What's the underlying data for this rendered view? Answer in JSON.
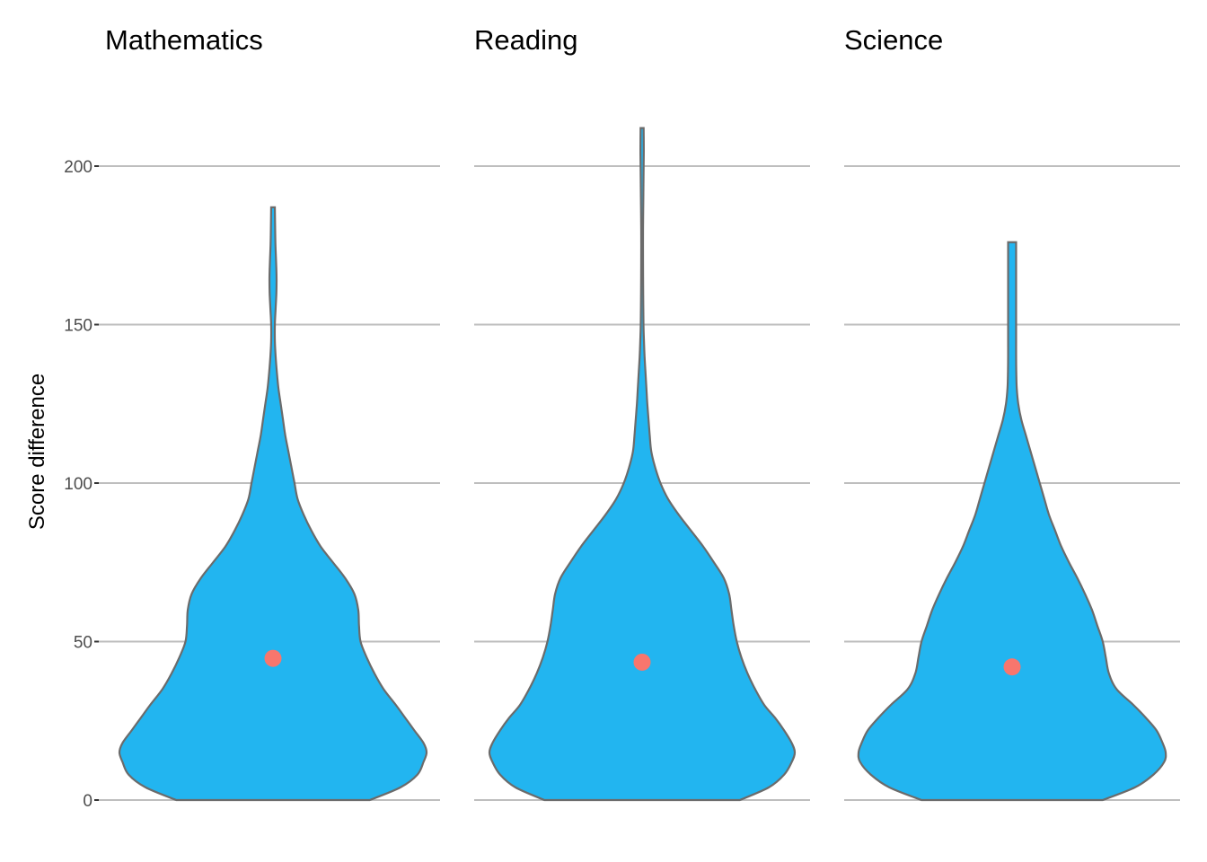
{
  "chart_data": {
    "type": "violin",
    "ylabel": "Score difference",
    "ylim": [
      0,
      212
    ],
    "yticks": [
      0,
      50,
      100,
      150,
      200
    ],
    "grid": "horizontal",
    "colors": {
      "violin_fill": "#22B5F0",
      "violin_outline": "#6b6b6b",
      "mean_point": "#F8766D",
      "grid": "#bebebe"
    },
    "panels": [
      {
        "title": "Mathematics",
        "mean": 44.7,
        "max": 187,
        "density_profile": [
          [
            0,
            0.63
          ],
          [
            4,
            0.83
          ],
          [
            8,
            0.94
          ],
          [
            12,
            0.98
          ],
          [
            15,
            1.0
          ],
          [
            18,
            0.98
          ],
          [
            22,
            0.92
          ],
          [
            26,
            0.86
          ],
          [
            30,
            0.8
          ],
          [
            35,
            0.72
          ],
          [
            40,
            0.66
          ],
          [
            45,
            0.61
          ],
          [
            50,
            0.57
          ],
          [
            55,
            0.56
          ],
          [
            60,
            0.555
          ],
          [
            65,
            0.53
          ],
          [
            70,
            0.47
          ],
          [
            75,
            0.39
          ],
          [
            80,
            0.31
          ],
          [
            85,
            0.25
          ],
          [
            90,
            0.2
          ],
          [
            95,
            0.16
          ],
          [
            100,
            0.14
          ],
          [
            105,
            0.12
          ],
          [
            110,
            0.1
          ],
          [
            115,
            0.08
          ],
          [
            120,
            0.065
          ],
          [
            125,
            0.05
          ],
          [
            130,
            0.035
          ],
          [
            135,
            0.025
          ],
          [
            140,
            0.017
          ],
          [
            145,
            0.012
          ],
          [
            150,
            0.012
          ],
          [
            155,
            0.017
          ],
          [
            160,
            0.022
          ],
          [
            165,
            0.023
          ],
          [
            170,
            0.02
          ],
          [
            175,
            0.016
          ],
          [
            180,
            0.014
          ],
          [
            187,
            0.012
          ]
        ]
      },
      {
        "title": "Reading",
        "mean": 43.5,
        "max": 212,
        "density_profile": [
          [
            0,
            0.64
          ],
          [
            4,
            0.83
          ],
          [
            8,
            0.93
          ],
          [
            12,
            0.98
          ],
          [
            15,
            1.0
          ],
          [
            18,
            0.98
          ],
          [
            22,
            0.93
          ],
          [
            26,
            0.87
          ],
          [
            30,
            0.8
          ],
          [
            35,
            0.74
          ],
          [
            40,
            0.69
          ],
          [
            45,
            0.65
          ],
          [
            50,
            0.62
          ],
          [
            55,
            0.6
          ],
          [
            60,
            0.585
          ],
          [
            65,
            0.57
          ],
          [
            70,
            0.535
          ],
          [
            75,
            0.47
          ],
          [
            80,
            0.4
          ],
          [
            85,
            0.32
          ],
          [
            90,
            0.24
          ],
          [
            95,
            0.17
          ],
          [
            100,
            0.12
          ],
          [
            105,
            0.085
          ],
          [
            110,
            0.06
          ],
          [
            115,
            0.05
          ],
          [
            120,
            0.042
          ],
          [
            125,
            0.034
          ],
          [
            130,
            0.028
          ],
          [
            135,
            0.022
          ],
          [
            140,
            0.016
          ],
          [
            145,
            0.012
          ],
          [
            150,
            0.009
          ],
          [
            160,
            0.007
          ],
          [
            170,
            0.006
          ],
          [
            180,
            0.006
          ],
          [
            190,
            0.008
          ],
          [
            200,
            0.01
          ],
          [
            205,
            0.011
          ],
          [
            212,
            0.01
          ]
        ]
      },
      {
        "title": "Science",
        "mean": 42.0,
        "max": 176,
        "density_profile": [
          [
            0,
            0.59
          ],
          [
            4,
            0.8
          ],
          [
            8,
            0.92
          ],
          [
            12,
            0.99
          ],
          [
            15,
            1.0
          ],
          [
            18,
            0.98
          ],
          [
            22,
            0.94
          ],
          [
            26,
            0.87
          ],
          [
            30,
            0.79
          ],
          [
            35,
            0.68
          ],
          [
            40,
            0.63
          ],
          [
            45,
            0.61
          ],
          [
            50,
            0.59
          ],
          [
            55,
            0.555
          ],
          [
            60,
            0.52
          ],
          [
            65,
            0.475
          ],
          [
            70,
            0.425
          ],
          [
            75,
            0.37
          ],
          [
            80,
            0.32
          ],
          [
            85,
            0.28
          ],
          [
            90,
            0.24
          ],
          [
            95,
            0.21
          ],
          [
            100,
            0.18
          ],
          [
            105,
            0.15
          ],
          [
            110,
            0.12
          ],
          [
            115,
            0.09
          ],
          [
            120,
            0.06
          ],
          [
            125,
            0.04
          ],
          [
            130,
            0.03
          ],
          [
            135,
            0.027
          ],
          [
            140,
            0.026
          ],
          [
            145,
            0.026
          ],
          [
            150,
            0.026
          ],
          [
            155,
            0.026
          ],
          [
            160,
            0.026
          ],
          [
            165,
            0.026
          ],
          [
            170,
            0.026
          ],
          [
            176,
            0.026
          ]
        ]
      }
    ]
  }
}
